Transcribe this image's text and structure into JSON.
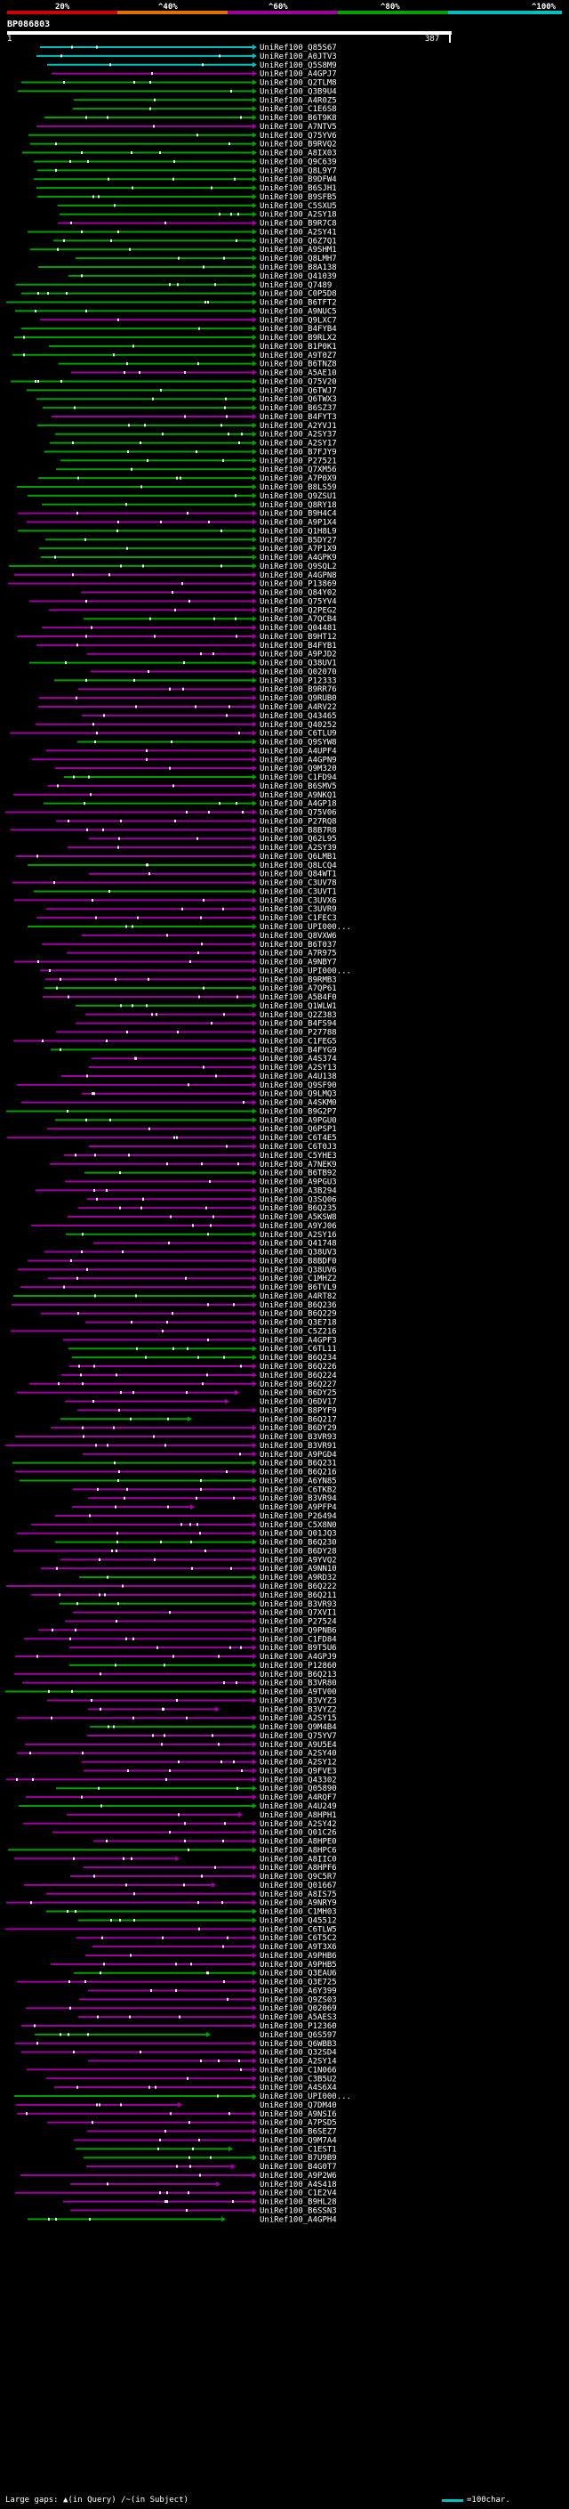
{
  "legend": {
    "labels": [
      "20%",
      "^40%",
      "^60%",
      "^80%",
      "^100%"
    ],
    "colors": [
      "#d00000",
      "#e07000",
      "#a000a0",
      "#00a000",
      "#00c0c0"
    ]
  },
  "query": {
    "id": "BP086803",
    "start": "1",
    "end": "387"
  },
  "hits": [
    "UniRef100_Q85S67",
    "UniRef100_A0JTV3",
    "UniRef100_Q5S8M9",
    "UniRef100_A4GPJ7",
    "UniRef100_Q2TLM8",
    "UniRef100_Q3B9U4",
    "UniRef100_A4R0Z5",
    "UniRef100_C1E6S8",
    "UniRef100_B6T9K8",
    "UniRef100_A7NTV5",
    "UniRef100_Q75YV6",
    "UniRef100_B9RVQ2",
    "UniRef100_A8IX03",
    "UniRef100_Q9C639",
    "UniRef100_Q8L9Y7",
    "UniRef100_B9DFW4",
    "UniRef100_B6SJH1",
    "UniRef100_B9SFB5",
    "UniRef100_C5SXU5",
    "UniRef100_A2SY18",
    "UniRef100_B9R7C8",
    "UniRef100_A2SY41",
    "UniRef100_Q6Z7Q1",
    "UniRef100_A9SHM1",
    "UniRef100_Q8LMH7",
    "UniRef100_B8A138",
    "UniRef100_Q41039",
    "UniRef100_Q7489",
    "UniRef100_C0P5D8",
    "UniRef100_B6TFT2",
    "UniRef100_A9NUC5",
    "UniRef100_Q9LXC7",
    "UniRef100_B4FYB4",
    "UniRef100_B9RLX2",
    "UniRef100_B1P0K1",
    "UniRef100_A9T0Z7",
    "UniRef100_B6TNZ8",
    "UniRef100_A5AE10",
    "UniRef100_Q75V20",
    "UniRef100_Q6TWJ7",
    "UniRef100_Q6TWX3",
    "UniRef100_B6SZ37",
    "UniRef100_B4FYT3",
    "UniRef100_A2YVJ1",
    "UniRef100_A2SY37",
    "UniRef100_A2SY17",
    "UniRef100_B7FJY9",
    "UniRef100_P27521",
    "UniRef100_Q7XM56",
    "UniRef100_A7P0X9",
    "UniRef100_B8LS59",
    "UniRef100_Q9ZSU1",
    "UniRef100_Q8RY18",
    "UniRef100_B9H4C4",
    "UniRef100_A9P1X4",
    "UniRef100_Q1H8L9",
    "UniRef100_B5DY27",
    "UniRef100_A7P1X9",
    "UniRef100_A4GPK9",
    "UniRef100_Q9SQL2",
    "UniRef100_A4GPN8",
    "UniRef100_P13869",
    "UniRef100_Q84Y02",
    "UniRef100_Q75YV4",
    "UniRef100_Q2PEG2",
    "UniRef100_A7QCB4",
    "UniRef100_Q04481",
    "UniRef100_B9HT12",
    "UniRef100_B4FYB1",
    "UniRef100_A9PJD2",
    "UniRef100_Q38UV1",
    "UniRef100_Q02070",
    "UniRef100_P12333",
    "UniRef100_B9RR76",
    "UniRef100_Q9RUB0",
    "UniRef100_A4RV22",
    "UniRef100_Q43465",
    "UniRef100_Q40252",
    "UniRef100_C6TLU9",
    "UniRef100_Q9SYW8",
    "UniRef100_A4UPF4",
    "UniRef100_A4GPN9",
    "UniRef100_Q9M320",
    "UniRef100_C1FD94",
    "UniRef100_B6SMV5",
    "UniRef100_A9NKQ1",
    "UniRef100_A4GP18",
    "UniRef100_Q75V06",
    "UniRef100_P27RQ8",
    "UniRef100_B8B7R8",
    "UniRef100_Q62L95",
    "UniRef100_A2SY39",
    "UniRef100_Q6LMB1",
    "UniRef100_Q8LCQ4",
    "UniRef100_Q84WT1",
    "UniRef100_C3UV78",
    "UniRef100_C3UVT1",
    "UniRef100_C3UVX6",
    "UniRef100_C3UVR9",
    "UniRef100_C1FEC3",
    "UniRef100_UPI000...",
    "UniRef100_Q8VXW6",
    "UniRef100_B6T037",
    "UniRef100_A7R975",
    "UniRef100_A9NBY7",
    "UniRef100_UPI000...",
    "UniRef100_B9RMB3",
    "UniRef100_A7QP61",
    "UniRef100_A5B4F0",
    "UniRef100_Q1WLW1",
    "UniRef100_Q2Z383",
    "UniRef100_B4FS94",
    "UniRef100_P27788",
    "UniRef100_C1FEG5",
    "UniRef100_B4FYG9",
    "UniRef100_A4S374",
    "UniRef100_A2SY13",
    "UniRef100_A4U138",
    "UniRef100_Q9SF90",
    "UniRef100_Q9LMQ3",
    "UniRef100_A4SKM0",
    "UniRef100_B9G2P7",
    "UniRef100_A9PGU0",
    "UniRef100_Q6PSP1",
    "UniRef100_C6T4E5",
    "UniRef100_C6T0J3",
    "UniRef100_C5YHE3",
    "UniRef100_A7NEK9",
    "UniRef100_B6TB92",
    "UniRef100_A9PGU3",
    "UniRef100_A3B294",
    "UniRef100_Q3SQ06",
    "UniRef100_B6Q235",
    "UniRef100_A5KSW8",
    "UniRef100_A9YJ06",
    "UniRef100_A2SY16",
    "UniRef100_Q41748",
    "UniRef100_Q38UV3",
    "UniRef100_B8BDF0",
    "UniRef100_Q38UV6",
    "UniRef100_C1MHZ2",
    "UniRef100_B6TVL9",
    "UniRef100_A4RT82",
    "UniRef100_B6Q236",
    "UniRef100_B6Q229",
    "UniRef100_Q3E718",
    "UniRef100_C5Z216",
    "UniRef100_A4GPF3",
    "UniRef100_C6TL11",
    "UniRef100_B6Q234",
    "UniRef100_B6Q226",
    "UniRef100_B6Q224",
    "UniRef100_B6Q227",
    "UniRef100_B6DY25",
    "UniRef100_Q6DV17",
    "UniRef100_B8PYF9",
    "UniRef100_B6Q217",
    "UniRef100_B6DY29",
    "UniRef100_B3VR93",
    "UniRef100_B3VR91",
    "UniRef100_A9PGD4",
    "UniRef100_B6Q231",
    "UniRef100_B6Q216",
    "UniRef100_A6YN85",
    "UniRef100_C6TKB2",
    "UniRef100_B3VR94",
    "UniRef100_A9PFP4",
    "UniRef100_P26494",
    "UniRef100_C5X8N0",
    "UniRef100_Q01JQ3",
    "UniRef100_B6Q230",
    "UniRef100_B6DY28",
    "UniRef100_A9YVQ2",
    "UniRef100_A9NN10",
    "UniRef100_A9RD32",
    "UniRef100_B6Q222",
    "UniRef100_B6Q211",
    "UniRef100_B3VR93",
    "UniRef100_Q7XVI1",
    "UniRef100_P27524",
    "UniRef100_Q9PNB6",
    "UniRef100_C1FD84",
    "UniRef100_B9T5U6",
    "UniRef100_A4GPJ9",
    "UniRef100_P12860",
    "UniRef100_B6Q213",
    "UniRef100_B3VR80",
    "UniRef100_A9TV00",
    "UniRef100_B3VYZ3",
    "UniRef100_B3VYZ2",
    "UniRef100_A2SY15",
    "UniRef100_Q9M4B4",
    "UniRef100_Q75YV7",
    "UniRef100_A9U5E4",
    "UniRef100_A2SY40",
    "UniRef100_A2SY12",
    "UniRef100_Q9FVE3",
    "UniRef100_Q43302",
    "UniRef100_Q05890",
    "UniRef100_A4RQF7",
    "UniRef100_A4U249",
    "UniRef100_A8HPH1",
    "UniRef100_A2SY42",
    "UniRef100_Q01C26",
    "UniRef100_A8HPE0",
    "UniRef100_A8HPC6",
    "UniRef100_A8IIC0",
    "UniRef100_A8HPF6",
    "UniRef100_Q9C5R7",
    "UniRef100_Q01667",
    "UniRef100_A8IS75",
    "UniRef100_A9NRY9",
    "UniRef100_C1MH03",
    "UniRef100_Q45512",
    "UniRef100_C6TLW5",
    "UniRef100_C6T5C2",
    "UniRef100_A9T3X6",
    "UniRef100_A9PHB6",
    "UniRef100_A9PHB5",
    "UniRef100_Q3EAU6",
    "UniRef100_Q3E725",
    "UniRef100_A6Y399",
    "UniRef100_Q9ZS03",
    "UniRef100_Q02069",
    "UniRef100_A5AES3",
    "UniRef100_P12360",
    "UniRef100_Q6S597",
    "UniRef100_Q6WBB3",
    "UniRef100_Q32SD4",
    "UniRef100_A2SY14",
    "UniRef100_C1N066",
    "UniRef100_C3B5U2",
    "UniRef100_A4S6X4",
    "UniRef100_UPI000...",
    "UniRef100_Q7DM40",
    "UniRef100_A9NSI6",
    "UniRef100_A7PSD5",
    "UniRef100_B6SEZ7",
    "UniRef100_Q9M7A4",
    "UniRef100_C1EST1",
    "UniRef100_B7U9B9",
    "UniRef100_B4G0T7",
    "UniRef100_A9P2W6",
    "UniRef100_A4S418",
    "UniRef100_C1E2V4",
    "UniRef100_B9HL28",
    "UniRef100_B6SSN3",
    "UniRef100_A4GPH4"
  ],
  "footer": {
    "large_gaps_label": "Large gaps:",
    "in_query_label": "(in Query)",
    "in_subject_label": "(in Subject)",
    "scale_label": "=100char."
  }
}
